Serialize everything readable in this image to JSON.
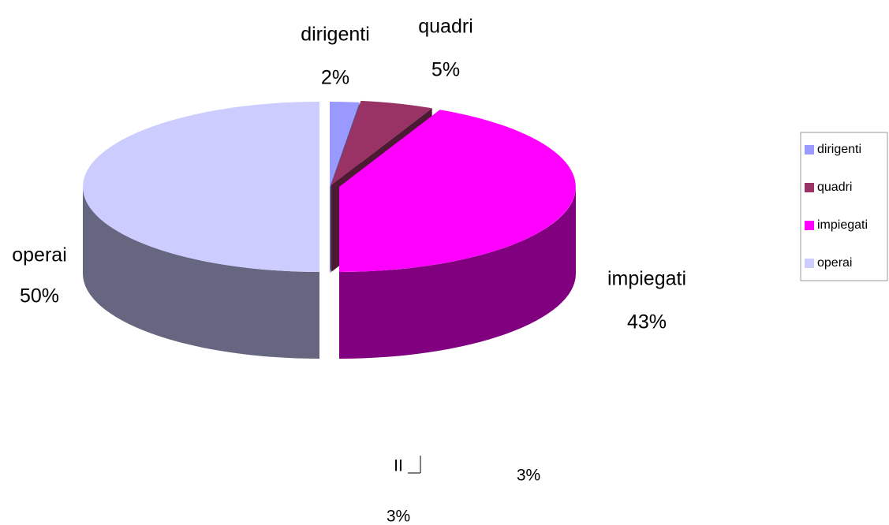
{
  "chart_data": {
    "type": "pie3d",
    "categories": [
      "dirigenti",
      "quadri",
      "impiegati",
      "operai"
    ],
    "values": [
      2,
      5,
      43,
      50
    ],
    "value_labels": [
      "2%",
      "5%",
      "43%",
      "50%"
    ],
    "colors": [
      "#9999ff",
      "#993366",
      "#ff00ff",
      "#ccccff"
    ],
    "side_colors": [
      "#5c5c99",
      "#4d1a33",
      "#800080",
      "#666680"
    ],
    "legend": "right",
    "annotations": [
      "II",
      "3%",
      "3%"
    ]
  }
}
